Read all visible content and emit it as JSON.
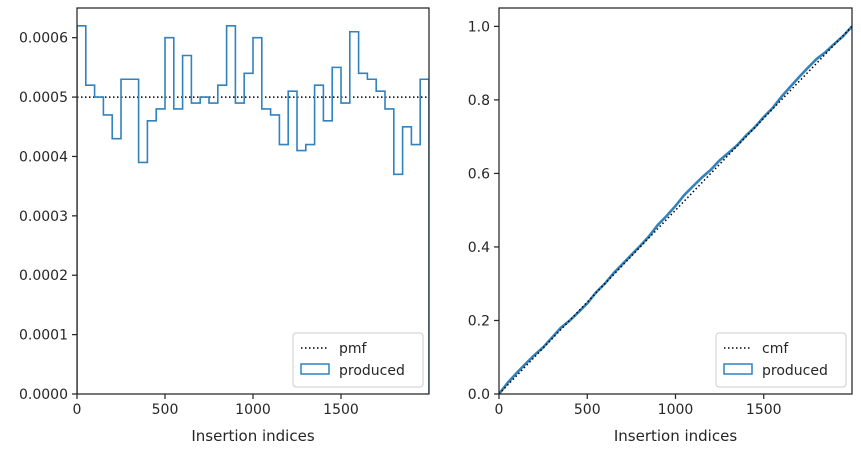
{
  "colors": {
    "step": "#3182bd",
    "reference": "#000000",
    "axes": "#262626"
  },
  "chart_data": [
    {
      "type": "step",
      "xlabel": "Insertion indices",
      "ylabel": "",
      "xlim": [
        0,
        2000
      ],
      "ylim": [
        0,
        0.00065
      ],
      "xticks": [
        0,
        500,
        1000,
        1500
      ],
      "xtick_labels": [
        "0",
        "500",
        "1000",
        "1500"
      ],
      "yticks": [
        0,
        0.0001,
        0.0002,
        0.0003,
        0.0004,
        0.0005,
        0.0006
      ],
      "ytick_labels": [
        "0.0000",
        "0.0001",
        "0.0002",
        "0.0003",
        "0.0004",
        "0.0005",
        "0.0006"
      ],
      "legend_position": "lower-right",
      "legend": [
        {
          "label": "pmf",
          "style": "dotted-line"
        },
        {
          "label": "produced",
          "style": "step-patch"
        }
      ],
      "reference_line": {
        "name": "pmf",
        "y": 0.0005
      },
      "bin_edges": [
        0,
        50,
        100,
        150,
        200,
        250,
        300,
        350,
        400,
        450,
        500,
        550,
        600,
        650,
        700,
        750,
        800,
        850,
        900,
        950,
        1000,
        1050,
        1100,
        1150,
        1200,
        1250,
        1300,
        1350,
        1400,
        1450,
        1500,
        1550,
        1600,
        1650,
        1700,
        1750,
        1800,
        1850,
        1900,
        1950,
        2000
      ],
      "series": [
        {
          "name": "produced",
          "values": [
            0.00062,
            0.00052,
            0.0005,
            0.00047,
            0.00043,
            0.00053,
            0.00053,
            0.00039,
            0.00046,
            0.00048,
            0.0006,
            0.00048,
            0.00057,
            0.00049,
            0.0005,
            0.00049,
            0.00052,
            0.00062,
            0.00049,
            0.00054,
            0.0006,
            0.00048,
            0.00047,
            0.00042,
            0.00051,
            0.00041,
            0.00042,
            0.00052,
            0.00046,
            0.00055,
            0.00049,
            0.00061,
            0.00054,
            0.00053,
            0.00051,
            0.00048,
            0.00037,
            0.00045,
            0.00042,
            0.00053
          ]
        }
      ]
    },
    {
      "type": "line",
      "xlabel": "Insertion indices",
      "ylabel": "",
      "xlim": [
        0,
        2000
      ],
      "ylim": [
        0,
        1.05
      ],
      "xticks": [
        0,
        500,
        1000,
        1500
      ],
      "xtick_labels": [
        "0",
        "500",
        "1000",
        "1500"
      ],
      "yticks": [
        0,
        0.2,
        0.4,
        0.6,
        0.8,
        1.0
      ],
      "ytick_labels": [
        "0.0",
        "0.2",
        "0.4",
        "0.6",
        "0.8",
        "1.0"
      ],
      "legend_position": "lower-right",
      "legend": [
        {
          "label": "cmf",
          "style": "dotted-line"
        },
        {
          "label": "produced",
          "style": "step-patch"
        }
      ],
      "reference_line": {
        "name": "cmf",
        "x": [
          0,
          2000
        ],
        "y": [
          0,
          1.0
        ]
      },
      "series": [
        {
          "name": "produced",
          "x": [
            0,
            50,
            100,
            150,
            200,
            250,
            300,
            350,
            400,
            450,
            500,
            550,
            600,
            650,
            700,
            750,
            800,
            850,
            900,
            950,
            1000,
            1050,
            1100,
            1150,
            1200,
            1250,
            1300,
            1350,
            1400,
            1450,
            1500,
            1550,
            1600,
            1650,
            1700,
            1750,
            1800,
            1850,
            1900,
            1950,
            2000
          ],
          "values": [
            0,
            0.031,
            0.057,
            0.082,
            0.1055,
            0.127,
            0.1535,
            0.18,
            0.1995,
            0.2225,
            0.2465,
            0.2765,
            0.3005,
            0.329,
            0.3535,
            0.3785,
            0.403,
            0.429,
            0.46,
            0.4845,
            0.5115,
            0.5415,
            0.5655,
            0.589,
            0.61,
            0.6355,
            0.656,
            0.677,
            0.703,
            0.726,
            0.7535,
            0.778,
            0.8085,
            0.8355,
            0.862,
            0.8875,
            0.9115,
            0.93,
            0.9525,
            0.9735,
            1.0
          ]
        }
      ]
    }
  ]
}
